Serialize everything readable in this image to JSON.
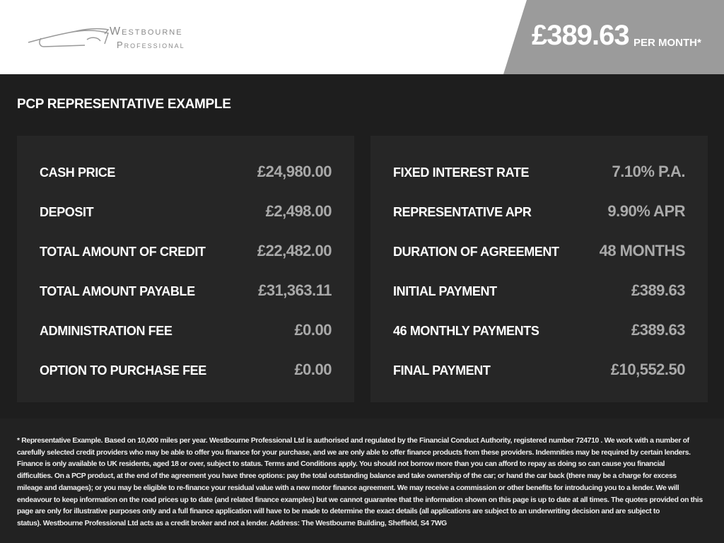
{
  "header": {
    "brand_line1": "Westbourne",
    "brand_line2": "Professional",
    "price": "£389.63",
    "per_month": "PER MONTH*"
  },
  "section_title": "PCP REPRESENTATIVE EXAMPLE",
  "left_rows": [
    {
      "label": "CASH PRICE",
      "value": "£24,980.00"
    },
    {
      "label": "DEPOSIT",
      "value": "£2,498.00"
    },
    {
      "label": "TOTAL AMOUNT OF CREDIT",
      "value": "£22,482.00"
    },
    {
      "label": "TOTAL AMOUNT PAYABLE",
      "value": "£31,363.11"
    },
    {
      "label": "ADMINISTRATION FEE",
      "value": "£0.00"
    },
    {
      "label": "OPTION TO PURCHASE FEE",
      "value": "£0.00"
    }
  ],
  "right_rows": [
    {
      "label": "FIXED INTEREST RATE",
      "value": "7.10% P.A."
    },
    {
      "label": "REPRESENTATIVE APR",
      "value": "9.90% APR"
    },
    {
      "label": "DURATION OF AGREEMENT",
      "value": "48 MONTHS"
    },
    {
      "label": "INITIAL PAYMENT",
      "value": "£389.63"
    },
    {
      "label": "46 MONTHLY PAYMENTS",
      "value": "£389.63"
    },
    {
      "label": "FINAL PAYMENT",
      "value": "£10,552.50"
    }
  ],
  "disclaimer_lines": [
    "* Representative Example. Based on 10,000 miles per year. Westbourne Professional Ltd is authorised and regulated by the Financial Conduct Authority, registered number 724710 . We work with a number of",
    "carefully selected credit providers who may be able to offer you finance for your purchase, and we are only able to offer finance products from these providers. Indemnities may be required by certain lenders.",
    "Finance is only available to UK residents, aged 18 or over, subject to status. Terms and Conditions apply. You should not borrow more than you can afford to repay as doing so can cause you financial",
    "difficulties. On a PCP product, at the end of the agreement you have three options: pay the total outstanding balance and take ownership of the car; or hand the car back (there may be a charge for excess",
    "mileage and damages); or you may be eligible to re-finance your residual value with a new motor finance agreement. We may receive a commission or other benefits for introducing you to a lender. We will",
    "endeavour to keep information on the road prices up to date (and related finance examples) but we cannot guarantee that the information shown on this page is up to date at all times. The quotes provided on this",
    "page are only for illustrative purposes only and a full finance application will have to be made to determine the exact details (all applications are subject to an underwriting decision and are subject to",
    "status). Westbourne Professional Ltd acts as a credit broker and not a lender. Address: The Westbourne Building, Sheffield, S4 7WG"
  ]
}
